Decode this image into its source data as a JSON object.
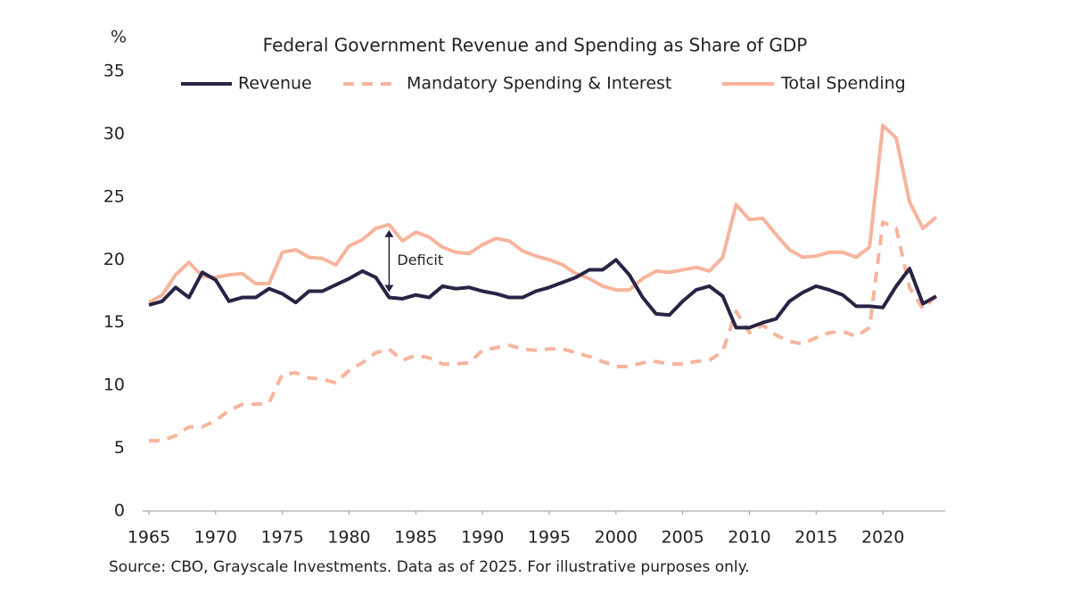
{
  "chart_data": {
    "type": "line",
    "title": "Federal Government Revenue and Spending as Share of GDP",
    "y_unit": "%",
    "source": "Source: CBO, Grayscale Investments. Data as of 2025. For illustrative purposes only.",
    "annotation": {
      "text": "Deficit",
      "x": 1983
    },
    "x": [
      1965,
      1966,
      1967,
      1968,
      1969,
      1970,
      1971,
      1972,
      1973,
      1974,
      1975,
      1976,
      1977,
      1978,
      1979,
      1980,
      1981,
      1982,
      1983,
      1984,
      1985,
      1986,
      1987,
      1988,
      1989,
      1990,
      1991,
      1992,
      1993,
      1994,
      1995,
      1996,
      1997,
      1998,
      1999,
      2000,
      2001,
      2002,
      2003,
      2004,
      2005,
      2006,
      2007,
      2008,
      2009,
      2010,
      2011,
      2012,
      2013,
      2014,
      2015,
      2016,
      2017,
      2018,
      2019,
      2020,
      2021,
      2022,
      2023,
      2024
    ],
    "series": [
      {
        "name": "Revenue",
        "color": "#2a2344",
        "dashed": false,
        "values": [
          16.4,
          16.7,
          17.8,
          17.0,
          19.0,
          18.4,
          16.7,
          17.0,
          17.0,
          17.7,
          17.3,
          16.6,
          17.5,
          17.5,
          18.0,
          18.5,
          19.1,
          18.6,
          17.0,
          16.9,
          17.2,
          17.0,
          17.9,
          17.7,
          17.8,
          17.5,
          17.3,
          17.0,
          17.0,
          17.5,
          17.8,
          18.2,
          18.6,
          19.2,
          19.2,
          20.0,
          18.8,
          17.0,
          15.7,
          15.6,
          16.7,
          17.6,
          17.9,
          17.1,
          14.6,
          14.6,
          15.0,
          15.3,
          16.7,
          17.4,
          17.9,
          17.6,
          17.2,
          16.3,
          16.3,
          16.2,
          17.9,
          19.3,
          16.5,
          17.1
        ]
      },
      {
        "name": "Mandatory Spending & Interest",
        "color": "#f7b49c",
        "dashed": true,
        "values": [
          5.6,
          5.6,
          6.0,
          6.7,
          6.7,
          7.2,
          8.0,
          8.5,
          8.5,
          8.6,
          10.9,
          11.0,
          10.6,
          10.5,
          10.2,
          11.2,
          11.8,
          12.6,
          12.9,
          12.0,
          12.4,
          12.2,
          11.7,
          11.7,
          11.8,
          12.8,
          13.0,
          13.2,
          12.9,
          12.8,
          12.9,
          12.9,
          12.6,
          12.3,
          11.9,
          11.5,
          11.5,
          11.8,
          11.9,
          11.7,
          11.7,
          11.9,
          12.0,
          12.7,
          15.9,
          14.2,
          14.8,
          14.0,
          13.5,
          13.3,
          13.8,
          14.2,
          14.3,
          13.9,
          14.6,
          23.0,
          22.5,
          17.8,
          16.1,
          17.1
        ]
      },
      {
        "name": "Total Spending",
        "color": "#f7b49c",
        "dashed": false,
        "values": [
          16.6,
          17.2,
          18.8,
          19.8,
          18.7,
          18.6,
          18.8,
          18.9,
          18.1,
          18.1,
          20.6,
          20.8,
          20.2,
          20.1,
          19.6,
          21.1,
          21.6,
          22.5,
          22.8,
          21.5,
          22.2,
          21.8,
          21.0,
          20.6,
          20.5,
          21.2,
          21.7,
          21.5,
          20.7,
          20.3,
          20.0,
          19.6,
          18.9,
          18.5,
          17.9,
          17.6,
          17.6,
          18.5,
          19.1,
          19.0,
          19.2,
          19.4,
          19.1,
          20.2,
          24.4,
          23.2,
          23.3,
          22.0,
          20.8,
          20.2,
          20.3,
          20.6,
          20.6,
          20.2,
          21.0,
          30.7,
          29.7,
          24.6,
          22.5,
          23.4
        ]
      }
    ],
    "xlim": [
      1965,
      2024
    ],
    "xticks": [
      1965,
      1970,
      1975,
      1980,
      1985,
      1990,
      1995,
      2000,
      2005,
      2010,
      2015,
      2020
    ],
    "ylim": [
      0,
      35
    ],
    "yticks": [
      0,
      5,
      10,
      15,
      20,
      25,
      30,
      35
    ],
    "grid": false,
    "legend": "top"
  }
}
